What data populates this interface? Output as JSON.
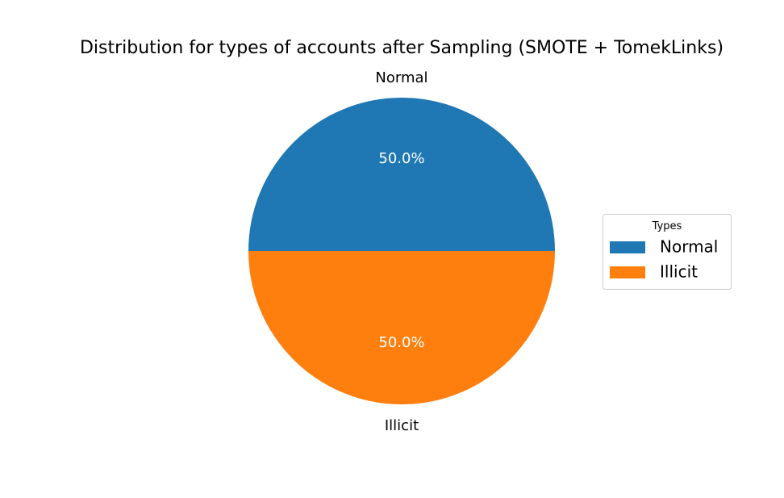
{
  "chart_data": {
    "type": "pie",
    "title": "Distribution for types of accounts after Sampling (SMOTE + TomekLinks)",
    "categories": [
      "Normal",
      "Illicit"
    ],
    "values": [
      50.0,
      50.0
    ],
    "percent_labels": [
      "50.0%",
      "50.0%"
    ],
    "colors": [
      "#1f77b4",
      "#ff7f0e"
    ],
    "label_color": "#ffffff",
    "legend": {
      "title": "Types",
      "placement": "center-right",
      "entries": [
        "Normal",
        "Illicit"
      ]
    }
  }
}
